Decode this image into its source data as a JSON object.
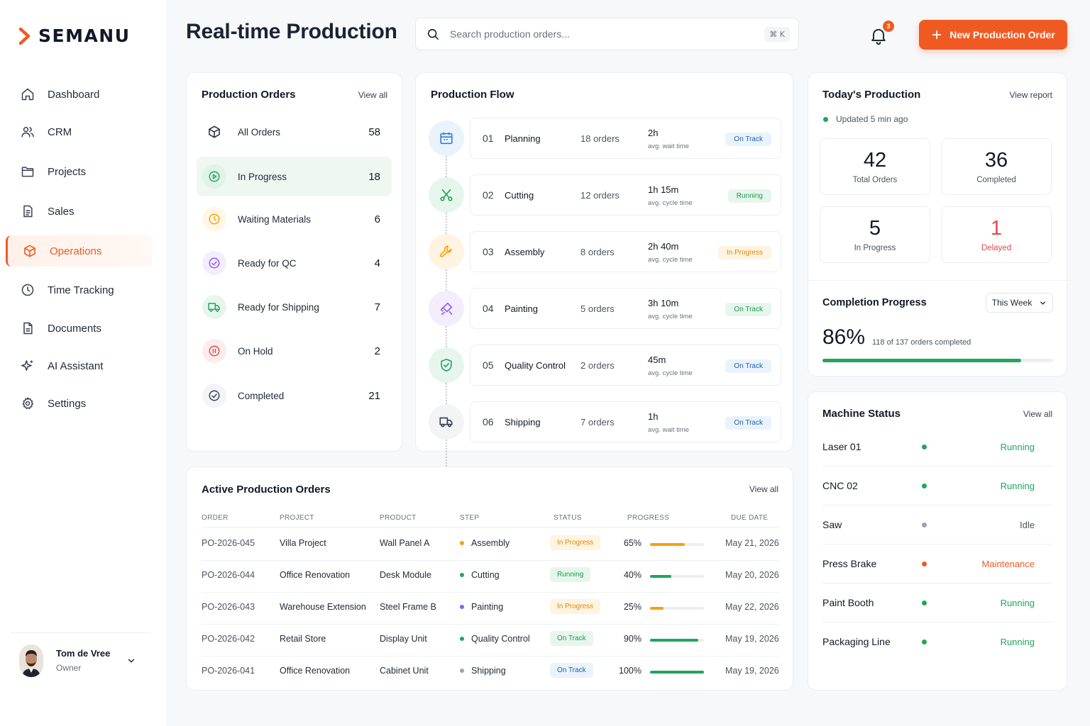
{
  "brand": {
    "name": "SEMANU",
    "accent": "#f05a22"
  },
  "sidebar": {
    "items": [
      {
        "label": "Dashboard",
        "icon": "home-icon"
      },
      {
        "label": "CRM",
        "icon": "users-icon"
      },
      {
        "label": "Projects",
        "icon": "folder-icon"
      },
      {
        "label": "Sales",
        "icon": "document-icon"
      },
      {
        "label": "Operations",
        "icon": "cube-icon",
        "active": true
      },
      {
        "label": "Time Tracking",
        "icon": "clock-icon"
      },
      {
        "label": "Documents",
        "icon": "file-icon"
      },
      {
        "label": "AI Assistant",
        "icon": "sparkle-icon"
      },
      {
        "label": "Settings",
        "icon": "gear-icon"
      }
    ],
    "user": {
      "name": "Tom de Vree",
      "role": "Owner"
    }
  },
  "header": {
    "title": "Real-time Production",
    "search_placeholder": "Search production orders...",
    "search_shortcut": "⌘ K",
    "notifications": "3",
    "new_order_label": "New Production Order"
  },
  "production_orders": {
    "title": "Production Orders",
    "view_all": "View all",
    "rows": [
      {
        "label": "All Orders",
        "count": "58",
        "icon": "box-icon"
      },
      {
        "label": "In Progress",
        "count": "18",
        "icon": "play-icon"
      },
      {
        "label": "Waiting Materials",
        "count": "6",
        "icon": "clock-icon"
      },
      {
        "label": "Ready for QC",
        "count": "4",
        "icon": "check-circle-icon"
      },
      {
        "label": "Ready for Shipping",
        "count": "7",
        "icon": "truck-icon"
      },
      {
        "label": "On Hold",
        "count": "2",
        "icon": "pause-icon"
      },
      {
        "label": "Completed",
        "count": "21",
        "icon": "check-circle-icon"
      }
    ]
  },
  "production_flow": {
    "title": "Production Flow",
    "steps": [
      {
        "num": "01",
        "name": "Planning",
        "orders": "18 orders",
        "time": "2h",
        "time_label": "avg. wait time",
        "status": "On Track",
        "icon": "calendar-icon"
      },
      {
        "num": "02",
        "name": "Cutting",
        "orders": "12 orders",
        "time": "1h 15m",
        "time_label": "avg. cycle time",
        "status": "Running",
        "icon": "scissors-icon"
      },
      {
        "num": "03",
        "name": "Assembly",
        "orders": "8 orders",
        "time": "2h 40m",
        "time_label": "avg. cycle time",
        "status": "In Progress",
        "icon": "wrench-icon"
      },
      {
        "num": "04",
        "name": "Painting",
        "orders": "5 orders",
        "time": "3h 10m",
        "time_label": "avg. cycle time",
        "status": "On Track",
        "icon": "paint-icon"
      },
      {
        "num": "05",
        "name": "Quality Control",
        "orders": "2 orders",
        "time": "45m",
        "time_label": "avg. cycle time",
        "status": "On Track",
        "icon": "shield-check-icon"
      },
      {
        "num": "06",
        "name": "Shipping",
        "orders": "7 orders",
        "time": "1h",
        "time_label": "avg. wait time",
        "status": "On Track",
        "icon": "truck-icon"
      }
    ]
  },
  "today": {
    "title": "Today's Production",
    "view_report": "View report",
    "updated": "Updated 5 min ago",
    "stats": [
      {
        "value": "42",
        "label": "Total Orders"
      },
      {
        "value": "36",
        "label": "Completed"
      },
      {
        "value": "5",
        "label": "In Progress"
      },
      {
        "value": "1",
        "label": "Delayed"
      }
    ],
    "completion": {
      "title": "Completion Progress",
      "period": "This Week",
      "percent": "86%",
      "percent_value": 86,
      "detail": "118 of 137 orders completed"
    }
  },
  "machines": {
    "title": "Machine Status",
    "view_all": "View all",
    "rows": [
      {
        "name": "Laser 01",
        "status": "Running",
        "color": "#22a55a"
      },
      {
        "name": "CNC 02",
        "status": "Running",
        "color": "#22a55a"
      },
      {
        "name": "Saw",
        "status": "Idle",
        "color": "#9ca3af"
      },
      {
        "name": "Press Brake",
        "status": "Maintenance",
        "color": "#f05a22"
      },
      {
        "name": "Paint Booth",
        "status": "Running",
        "color": "#22a55a"
      },
      {
        "name": "Packaging Line",
        "status": "Running",
        "color": "#22a55a"
      }
    ]
  },
  "active_orders": {
    "title": "Active Production Orders",
    "view_all": "View all",
    "columns": [
      "ORDER",
      "PROJECT",
      "PRODUCT",
      "STEP",
      "STATUS",
      "PROGRESS",
      "DUE DATE"
    ],
    "rows": [
      {
        "order": "PO-2026-045",
        "project": "Villa Project",
        "product": "Wall Panel A",
        "step": "Assembly",
        "step_color": "#f5a300",
        "status": "In Progress",
        "progress": "65%",
        "progress_value": 65,
        "bar_color": "#f5a300",
        "due": "May 21, 2026"
      },
      {
        "order": "PO-2026-044",
        "project": "Office Renovation",
        "product": "Desk Module",
        "step": "Cutting",
        "step_color": "#22a55a",
        "status": "Running",
        "progress": "40%",
        "progress_value": 40,
        "bar_color": "#22a55a",
        "due": "May 20, 2026"
      },
      {
        "order": "PO-2026-043",
        "project": "Warehouse Extension",
        "product": "Steel Frame B",
        "step": "Painting",
        "step_color": "#8b5cf6",
        "status": "In Progress",
        "progress": "25%",
        "progress_value": 25,
        "bar_color": "#f5a300",
        "due": "May 22, 2026"
      },
      {
        "order": "PO-2026-042",
        "project": "Retail Store",
        "product": "Display Unit",
        "step": "Quality Control",
        "step_color": "#22a55a",
        "status": "On Track",
        "progress": "90%",
        "progress_value": 90,
        "bar_color": "#22a55a",
        "due": "May 19, 2026"
      },
      {
        "order": "PO-2026-041",
        "project": "Office Renovation",
        "product": "Cabinet Unit",
        "step": "Shipping",
        "step_color": "#9ca3af",
        "status": "On Track",
        "progress": "100%",
        "progress_value": 100,
        "bar_color": "#22a55a",
        "due": "May 19, 2026"
      }
    ]
  }
}
